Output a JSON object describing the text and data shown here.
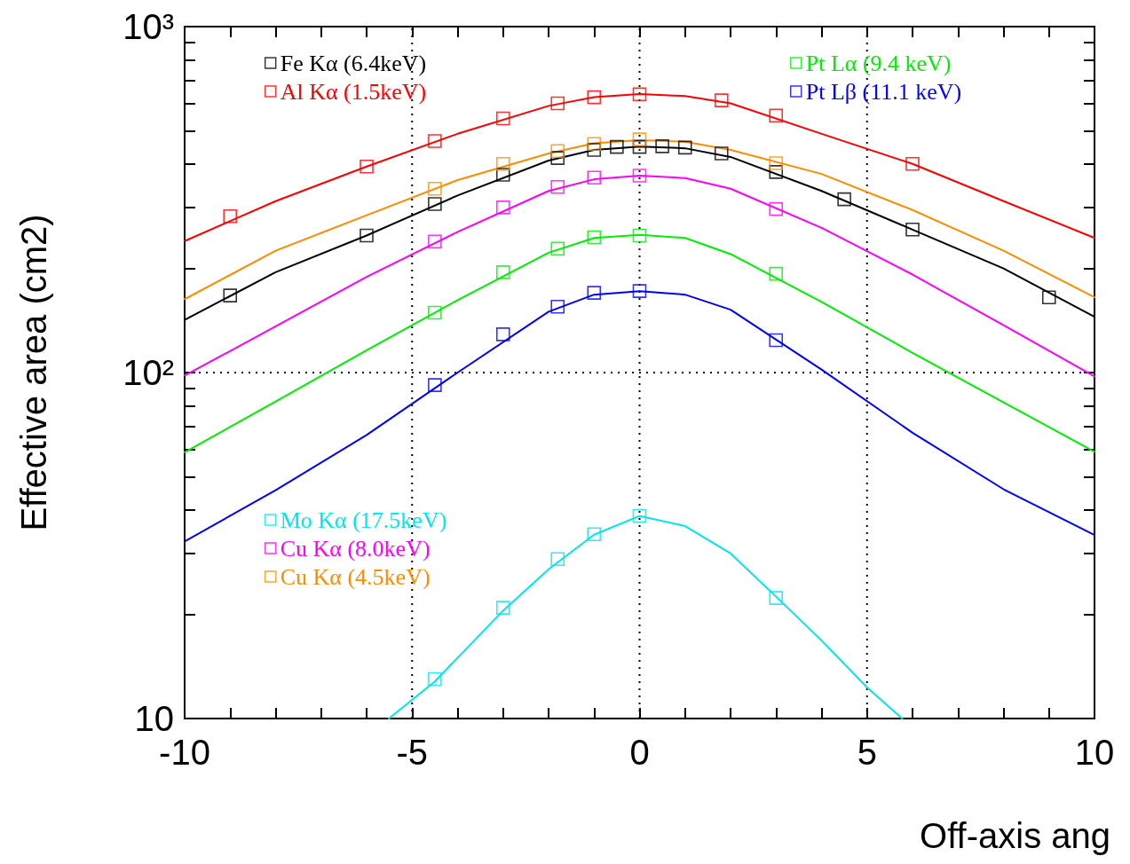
{
  "chart_data": {
    "type": "scatter",
    "xlabel": "Off-axis ang",
    "ylabel": "Effective area (cm2)",
    "xlim": [
      -10,
      10
    ],
    "xticks": [
      -10,
      {
        "value": -9,
        "label": null
      },
      {
        "value": -8,
        "label": null
      },
      {
        "value": -7,
        "label": null
      },
      {
        "value": -6,
        "label": null
      },
      -5,
      {
        "value": -4,
        "label": null
      },
      {
        "value": -3,
        "label": null
      },
      {
        "value": -2,
        "label": null
      },
      {
        "value": -1,
        "label": null
      },
      0,
      {
        "value": 1,
        "label": null
      },
      {
        "value": 2,
        "label": null
      },
      {
        "value": 3,
        "label": null
      },
      {
        "value": 4,
        "label": null
      },
      5,
      {
        "value": 6,
        "label": null
      },
      {
        "value": 7,
        "label": null
      },
      {
        "value": 8,
        "label": null
      },
      {
        "value": 9,
        "label": null
      },
      10
    ],
    "ylim": [
      10,
      1000
    ],
    "yticks": [
      10,
      {
        "value": 20,
        "label": null
      },
      {
        "value": 30,
        "label": null
      },
      {
        "value": 40,
        "label": null
      },
      {
        "value": 50,
        "label": null
      },
      {
        "value": 60,
        "label": null
      },
      {
        "value": 70,
        "label": null
      },
      {
        "value": 80,
        "label": null
      },
      {
        "value": 90,
        "label": null
      },
      {
        "value": 100,
        "label": "10²"
      },
      {
        "value": 200,
        "label": null
      },
      {
        "value": 300,
        "label": null
      },
      {
        "value": 400,
        "label": null
      },
      {
        "value": 500,
        "label": null
      },
      {
        "value": 600,
        "label": null
      },
      {
        "value": 700,
        "label": null
      },
      {
        "value": 800,
        "label": null
      },
      {
        "value": 900,
        "label": null
      },
      {
        "value": 1000,
        "label": "10³"
      }
    ],
    "log": "y",
    "grid": true,
    "legend": "top left",
    "marker": "square",
    "series": [
      {
        "name": "Fe Kα (6.4keV)",
        "color": "#000000",
        "x": [
          -9,
          -6,
          -4.5,
          -3,
          -1.8,
          -1,
          -0.5,
          0,
          0.5,
          1,
          1.8,
          3,
          4.5,
          6,
          9
        ],
        "values": [
          167,
          249,
          307,
          373,
          417,
          440,
          449,
          449,
          451,
          447,
          430,
          380,
          317,
          259,
          165
        ]
      },
      {
        "name": "Al Kα (1.5keV)",
        "color": "#ff0000",
        "x": [
          -9,
          -6,
          -4.5,
          -3,
          -1.8,
          -1,
          0,
          1.8,
          3,
          6
        ],
        "values": [
          283,
          394,
          467,
          543,
          600,
          625,
          637,
          612,
          553,
          401
        ]
      },
      {
        "name": "Pt Lα (9.4 keV)",
        "color": "#00ee00",
        "x": [
          -4.5,
          -3,
          -1.8,
          -1,
          0,
          3
        ],
        "values": [
          149,
          195,
          228,
          246,
          249,
          193
        ]
      },
      {
        "name": "Pt Lβ (11.1 keV)",
        "color": "#0000ff",
        "x": [
          -4.5,
          -3,
          -1.8,
          -1,
          0,
          3
        ],
        "values": [
          92,
          129,
          155,
          170,
          172,
          124
        ]
      },
      {
        "name": "Mo Kα (17.5keV)",
        "color": "#00e5ee",
        "x": [
          -4.5,
          -3,
          -1.8,
          -1,
          0,
          3
        ],
        "values": [
          13.0,
          20.9,
          28.9,
          34.1,
          38.5,
          22.3
        ]
      },
      {
        "name": "Cu Kα (8.0keV)",
        "color": "#ff00ff",
        "x": [
          -4.5,
          -3,
          -1.8,
          -1,
          0,
          3
        ],
        "values": [
          239,
          300,
          344,
          366,
          371,
          297
        ]
      },
      {
        "name": "Cu Kα (4.5keV)",
        "color": "#ff8c00",
        "x": [
          -4.5,
          -3,
          -1.8,
          -1,
          0,
          3
        ],
        "values": [
          340,
          401,
          437,
          458,
          472,
          403
        ]
      },
      {
        "type": "line",
        "marker": "none",
        "color": "#000000",
        "x": [
          -10,
          -8,
          -6,
          -4,
          -2,
          -1,
          0,
          1,
          2,
          4,
          6,
          8,
          10
        ],
        "values": [
          142,
          195,
          249,
          325,
          410,
          440,
          450,
          445,
          420,
          335,
          259,
          200,
          145
        ]
      },
      {
        "type": "line",
        "marker": "none",
        "color": "#ff0000",
        "x": [
          -10,
          -8,
          -6,
          -4,
          -2,
          -1,
          0,
          1,
          2,
          4,
          6,
          8,
          10
        ],
        "values": [
          240,
          313,
          394,
          490,
          590,
          625,
          638,
          630,
          600,
          490,
          401,
          313,
          245
        ]
      },
      {
        "type": "line",
        "marker": "none",
        "color": "#00ee00",
        "x": [
          -10,
          -8,
          -6,
          -4,
          -2,
          -1,
          0,
          1,
          2,
          4,
          6,
          8,
          10
        ],
        "values": [
          58.8,
          82.5,
          116,
          162,
          222,
          245,
          250,
          245,
          220,
          160,
          114,
          82,
          59
        ]
      },
      {
        "type": "line",
        "marker": "none",
        "color": "#0000ff",
        "x": [
          -10,
          -8,
          -6,
          -4,
          -2,
          -1,
          0,
          1,
          2,
          4,
          6,
          8,
          10
        ],
        "values": [
          32.5,
          45.7,
          66,
          100,
          150,
          168,
          172,
          168,
          152,
          102,
          67,
          46,
          33.9
        ]
      },
      {
        "type": "line",
        "marker": "none",
        "color": "#00e5ee",
        "x": [
          -5.51,
          -4.5,
          -3,
          -2,
          -1,
          0,
          1,
          2,
          3,
          4,
          5,
          5.77
        ],
        "values": [
          10,
          12.8,
          20.5,
          27,
          34,
          38.5,
          36,
          30,
          22.5,
          16.8,
          12.3,
          10
        ]
      },
      {
        "type": "line",
        "marker": "none",
        "color": "#ff00ff",
        "x": [
          -10,
          -8,
          -6,
          -4,
          -2,
          -1,
          0,
          1,
          2,
          4,
          6,
          8,
          10
        ],
        "values": [
          98,
          136,
          189,
          255,
          335,
          362,
          371,
          365,
          340,
          262,
          192,
          137,
          97.5
        ]
      },
      {
        "type": "line",
        "marker": "none",
        "color": "#ff8c00",
        "x": [
          -10,
          -8,
          -6,
          -4,
          -2,
          -1,
          0,
          1,
          2,
          4,
          6,
          8,
          10
        ],
        "values": [
          163,
          225,
          285,
          360,
          430,
          460,
          470,
          465,
          440,
          375,
          295,
          225,
          165
        ]
      }
    ]
  }
}
